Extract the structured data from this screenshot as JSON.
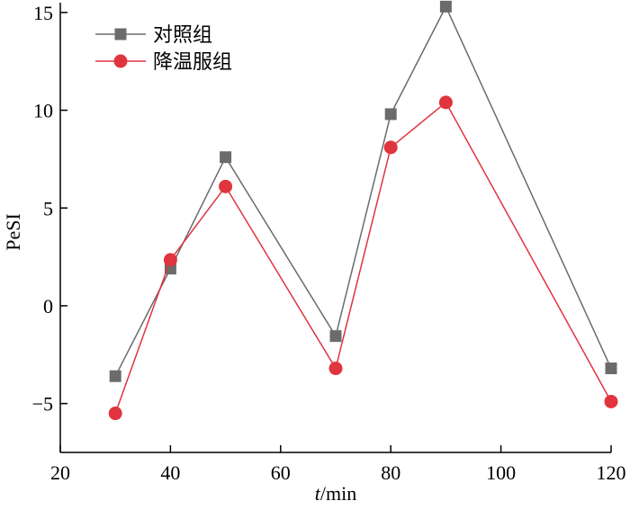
{
  "chart_data": {
    "type": "line",
    "title": "",
    "xlabel_italic": "t",
    "xlabel_rest": "/min",
    "ylabel": "PeSI",
    "xlim": [
      20,
      120
    ],
    "ylim": [
      -7.5,
      15.5
    ],
    "xticks": [
      20,
      40,
      60,
      80,
      100,
      120
    ],
    "xtick_labels": [
      "20",
      "40",
      "60",
      "80",
      "100",
      "120"
    ],
    "yticks": [
      15,
      10,
      5,
      0,
      -5
    ],
    "ytick_labels": [
      "15",
      "10",
      "5",
      "0",
      "−5"
    ],
    "x": [
      30,
      40,
      50,
      70,
      80,
      90,
      120
    ],
    "legend_position": "top-left",
    "series": [
      {
        "name": "对照组",
        "marker": "square",
        "color": "#6b6b6b",
        "values": [
          -3.6,
          1.9,
          7.6,
          -1.55,
          9.8,
          15.3,
          -3.2
        ]
      },
      {
        "name": "降温服组",
        "marker": "circle",
        "color": "#e0343f",
        "values": [
          -5.5,
          2.35,
          6.1,
          -3.2,
          8.1,
          10.4,
          -4.9
        ]
      }
    ]
  }
}
